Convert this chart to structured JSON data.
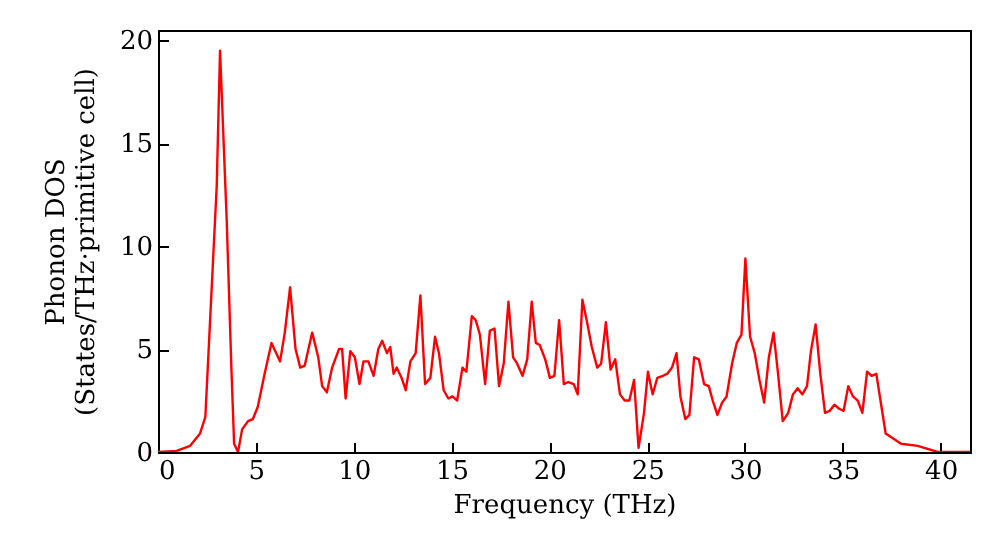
{
  "chart_data": {
    "type": "line",
    "xlabel": "Frequency (THz)",
    "ylabel": "Phonon DOS\n(States/THz·primitive cell)",
    "xlim": [
      0,
      41.5
    ],
    "ylim": [
      0,
      20.5
    ],
    "xticks": [
      0,
      5,
      10,
      15,
      20,
      25,
      30,
      35,
      40
    ],
    "yticks": [
      0,
      5,
      10,
      15,
      20
    ],
    "grid": false,
    "marker": "none",
    "line_style": "solid",
    "series": [
      {
        "color": "#ff0000",
        "x": [
          0,
          0.95,
          1.64,
          2.15,
          2.42,
          2.73,
          3.0,
          3.17,
          3.51,
          3.75,
          3.89,
          4.09,
          4.3,
          4.6,
          4.85,
          5.1,
          5.45,
          5.8,
          6.24,
          6.48,
          6.75,
          7.03,
          7.27,
          7.5,
          7.88,
          8.19,
          8.39,
          8.63,
          8.9,
          9.25,
          9.41,
          9.59,
          9.83,
          10.06,
          10.3,
          10.5,
          10.75,
          11.02,
          11.26,
          11.46,
          11.7,
          11.87,
          12.04,
          12.2,
          12.45,
          12.66,
          12.9,
          13.17,
          13.41,
          13.65,
          13.92,
          14.16,
          14.36,
          14.6,
          14.84,
          15.05,
          15.29,
          15.56,
          15.76,
          16.04,
          16.24,
          16.45,
          16.72,
          16.96,
          17.2,
          17.43,
          17.67,
          17.91,
          18.15,
          18.35,
          18.63,
          18.87,
          19.1,
          19.31,
          19.51,
          19.79,
          20.03,
          20.26,
          20.5,
          20.74,
          20.97,
          21.25,
          21.45,
          21.69,
          21.93,
          22.17,
          22.45,
          22.65,
          22.89,
          23.13,
          23.37,
          23.61,
          23.85,
          24.09,
          24.33,
          24.56,
          24.84,
          25.04,
          25.28,
          25.52,
          25.8,
          26.03,
          26.27,
          26.5,
          26.7,
          26.95,
          27.16,
          27.4,
          27.64,
          27.91,
          28.15,
          28.35,
          28.59,
          28.83,
          29.06,
          29.34,
          29.58,
          29.82,
          30.02,
          30.26,
          30.5,
          30.74,
          30.98,
          31.22,
          31.46,
          31.69,
          31.93,
          32.21,
          32.45,
          32.69,
          32.93,
          33.17,
          33.37,
          33.61,
          33.85,
          34.09,
          34.33,
          34.57,
          34.81,
          35.04,
          35.28,
          35.52,
          35.76,
          36.0,
          36.24,
          36.47,
          36.71,
          37.19,
          37.98,
          38.83,
          39.85,
          41.5
        ],
        "values": [
          0,
          0.05,
          0.3,
          0.9,
          1.7,
          7.7,
          12.9,
          19.5,
          11.3,
          4.1,
          0.4,
          0,
          1.1,
          1.5,
          1.6,
          2.2,
          3.8,
          5.3,
          4.4,
          5.8,
          8.0,
          5.0,
          4.1,
          4.2,
          5.8,
          4.6,
          3.2,
          2.9,
          4.1,
          5.0,
          5.0,
          2.6,
          4.9,
          4.6,
          3.3,
          4.4,
          4.4,
          3.7,
          5.0,
          5.4,
          4.8,
          5.1,
          3.8,
          4.1,
          3.6,
          3.0,
          4.4,
          4.8,
          7.6,
          3.3,
          3.6,
          5.6,
          4.8,
          3.0,
          2.6,
          2.7,
          2.5,
          4.1,
          3.9,
          6.6,
          6.4,
          5.7,
          3.3,
          5.9,
          6.0,
          3.2,
          4.3,
          7.3,
          4.6,
          4.3,
          3.7,
          4.5,
          7.3,
          5.3,
          5.2,
          4.5,
          3.6,
          3.7,
          6.4,
          3.3,
          3.4,
          3.3,
          2.8,
          7.4,
          6.3,
          5.1,
          4.1,
          4.3,
          6.3,
          4.0,
          4.5,
          2.8,
          2.5,
          2.5,
          3.5,
          0.2,
          1.9,
          3.9,
          2.8,
          3.6,
          3.7,
          3.8,
          4.1,
          4.8,
          2.7,
          1.6,
          1.8,
          4.6,
          4.5,
          3.3,
          3.2,
          2.5,
          1.8,
          2.4,
          2.7,
          4.3,
          5.3,
          5.7,
          9.4,
          5.6,
          4.8,
          3.5,
          2.4,
          4.6,
          5.8,
          3.8,
          1.5,
          1.9,
          2.8,
          3.1,
          2.8,
          3.2,
          4.9,
          6.2,
          3.8,
          1.9,
          2.0,
          2.3,
          2.1,
          2.0,
          3.2,
          2.7,
          2.5,
          1.9,
          3.9,
          3.7,
          3.8,
          0.9,
          0.4,
          0.3,
          0,
          0
        ]
      }
    ]
  }
}
